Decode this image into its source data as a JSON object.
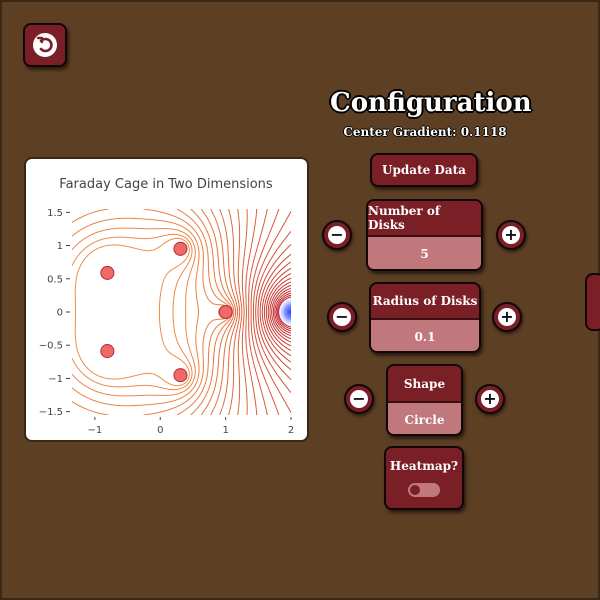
{
  "header": {
    "title": "Configuration",
    "gradient_label": "Center Gradient: 0.1118"
  },
  "nav": {
    "back_icon": "undo-arrow-icon"
  },
  "controls": {
    "update_label": "Update Data",
    "num_disks": {
      "label": "Number of Disks",
      "value": "5",
      "minus": "−",
      "plus": "+"
    },
    "radius": {
      "label": "Radius of Disks",
      "value": "0.1",
      "minus": "−",
      "plus": "+"
    },
    "shape": {
      "label": "Shape",
      "value": "Circle",
      "minus": "−",
      "plus": "+"
    },
    "heatmap": {
      "label": "Heatmap?",
      "enabled": false
    }
  },
  "colors": {
    "background": "#5d3f24",
    "button": "#7b1f27",
    "button_light": "#c0787d",
    "contour": "#d0343e",
    "disk": "#f06868"
  },
  "chart_data": {
    "type": "contour",
    "title": "Faraday Cage in Two Dimensions",
    "xlim": [
      -1.35,
      2
    ],
    "ylim": [
      -1.55,
      1.55
    ],
    "x_ticks": [
      "−1",
      "0",
      "1",
      "2"
    ],
    "x_tick_values": [
      -1,
      0,
      1,
      2
    ],
    "y_ticks": [
      "1.5",
      "1",
      "0.5",
      "0",
      "−0.5",
      "−1",
      "−1.5"
    ],
    "y_tick_values": [
      1.5,
      1,
      0.5,
      0,
      -0.5,
      -1,
      -1.5
    ],
    "disks": [
      {
        "x": 1.0,
        "y": 0.0
      },
      {
        "x": 0.309,
        "y": 0.951
      },
      {
        "x": -0.809,
        "y": 0.588
      },
      {
        "x": -0.809,
        "y": -0.588
      },
      {
        "x": 0.309,
        "y": -0.951
      }
    ],
    "disk_radius": 0.1,
    "source": {
      "x": 2.0,
      "y": 0.0
    }
  }
}
